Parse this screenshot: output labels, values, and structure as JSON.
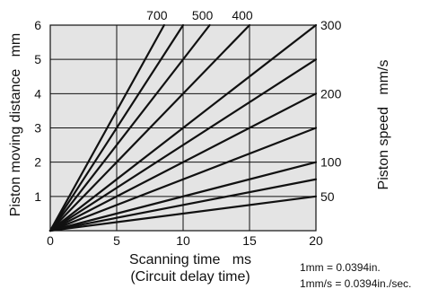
{
  "chart_data": {
    "type": "line",
    "xlabel": "Scanning time   ms",
    "xlabel_sub": "(Circuit delay time)",
    "ylabel": "Piston moving distance   mm",
    "y2label": "Piston speed   mm/s",
    "xlim": [
      0,
      20
    ],
    "ylim": [
      0,
      6
    ],
    "x_ticks": [
      "0",
      "5",
      "10",
      "15",
      "20"
    ],
    "y_ticks": [
      "1",
      "2",
      "3",
      "4",
      "5",
      "6"
    ],
    "grid": true,
    "series": [
      {
        "name": "50",
        "x": [
          0,
          20
        ],
        "y": [
          0,
          1
        ]
      },
      {
        "name": "",
        "x": [
          0,
          20
        ],
        "y": [
          0,
          1.5
        ]
      },
      {
        "name": "100",
        "x": [
          0,
          20
        ],
        "y": [
          0,
          2
        ]
      },
      {
        "name": "",
        "x": [
          0,
          20
        ],
        "y": [
          0,
          3
        ]
      },
      {
        "name": "200",
        "x": [
          0,
          20
        ],
        "y": [
          0,
          4
        ]
      },
      {
        "name": "",
        "x": [
          0,
          20
        ],
        "y": [
          0,
          5
        ]
      },
      {
        "name": "300",
        "x": [
          0,
          20
        ],
        "y": [
          0,
          6
        ]
      },
      {
        "name": "400",
        "x": [
          0,
          15
        ],
        "y": [
          0,
          6
        ]
      },
      {
        "name": "500",
        "x": [
          0,
          12
        ],
        "y": [
          0,
          6
        ]
      },
      {
        "name": "",
        "x": [
          0,
          10
        ],
        "y": [
          0,
          6
        ]
      },
      {
        "name": "700",
        "x": [
          0,
          8.57
        ],
        "y": [
          0,
          6
        ]
      }
    ],
    "notes": [
      "1mm = 0.0394in.",
      "1mm/s = 0.0394in./sec."
    ],
    "colors": {
      "plot_background": "#e4e4e4",
      "lines": "#111111",
      "grid": "#111111"
    }
  }
}
